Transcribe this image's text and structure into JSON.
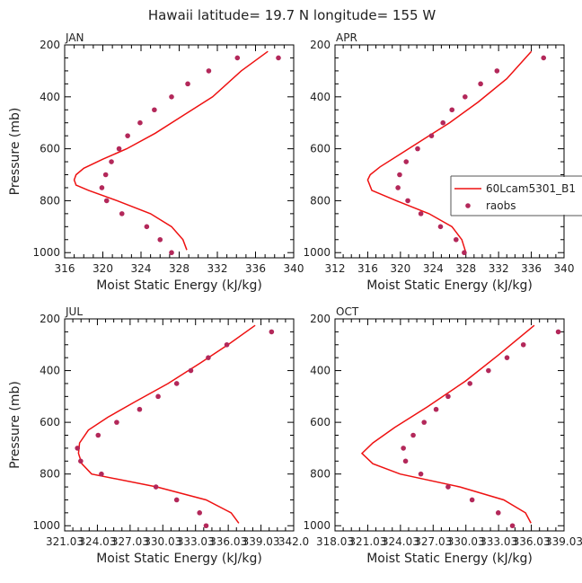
{
  "figure": {
    "title": "Hawaii  latitude= 19.7 N longitude= 155 W"
  },
  "chart_data": [
    {
      "type": "line",
      "panel": "JAN",
      "xlabel": "Moist Static Energy (kJ/kg)",
      "ylabel": "Pressure (mb)",
      "xlim": [
        316,
        340
      ],
      "ylim": [
        200,
        1020
      ],
      "xticks": [
        "316",
        "320",
        "324",
        "328",
        "332",
        "336",
        "340"
      ],
      "yticks": [
        "200",
        "400",
        "600",
        "800",
        "1000"
      ],
      "model": {
        "name": "60Lcam5301_B1",
        "x": [
          328.8,
          328.4,
          327.2,
          325.0,
          321.5,
          318.5,
          317.2,
          317.0,
          317.2,
          318.0,
          320.0,
          322.5,
          325.5,
          328.5,
          331.5,
          334.5,
          337.3
        ],
        "y": [
          990,
          950,
          900,
          850,
          800,
          760,
          740,
          720,
          700,
          675,
          640,
          600,
          540,
          470,
          400,
          300,
          225
        ]
      },
      "raobs": {
        "name": "raobs",
        "x": [
          327.2,
          326.0,
          324.6,
          322.0,
          320.4,
          319.9,
          320.3,
          320.9,
          321.7,
          322.6,
          323.9,
          325.4,
          327.2,
          328.9,
          331.1,
          334.1,
          338.4
        ],
        "y": [
          1000,
          950,
          900,
          850,
          800,
          750,
          700,
          650,
          600,
          550,
          500,
          450,
          400,
          350,
          300,
          250,
          250
        ]
      },
      "legend": false
    },
    {
      "type": "line",
      "panel": "APR",
      "xlabel": "Moist Static Energy (kJ/kg)",
      "ylabel": "",
      "xlim": [
        312,
        340
      ],
      "ylim": [
        200,
        1020
      ],
      "xticks": [
        "312",
        "316",
        "320",
        "324",
        "328",
        "332",
        "336",
        "340"
      ],
      "yticks": [
        "200",
        "400",
        "600",
        "800",
        "1000"
      ],
      "model": {
        "name": "60Lcam5301_B1",
        "x": [
          328.0,
          327.5,
          326.3,
          323.5,
          319.5,
          316.5,
          316.0,
          316.3,
          317.5,
          320.0,
          323.0,
          326.0,
          329.5,
          333.0,
          336.0
        ],
        "y": [
          1000,
          950,
          900,
          850,
          800,
          760,
          720,
          700,
          670,
          620,
          560,
          500,
          420,
          330,
          225
        ]
      },
      "raobs": {
        "name": "raobs",
        "x": [
          327.8,
          326.8,
          324.9,
          322.5,
          320.9,
          319.7,
          319.9,
          320.7,
          322.1,
          323.8,
          325.2,
          326.3,
          327.9,
          329.8,
          331.8,
          337.5
        ],
        "y": [
          1000,
          950,
          900,
          850,
          800,
          750,
          700,
          650,
          600,
          550,
          500,
          450,
          400,
          350,
          300,
          250
        ]
      },
      "legend": true
    },
    {
      "type": "line",
      "panel": "JUL",
      "xlabel": "Moist Static Energy (kJ/kg)",
      "ylabel": "Pressure (mb)",
      "xlim": [
        321.03,
        342.03
      ],
      "ylim": [
        200,
        1020
      ],
      "xticks": [
        "321.03",
        "324.03",
        "327.03",
        "330.03",
        "333.03",
        "336.03",
        "339.03",
        "342.0"
      ],
      "yticks": [
        "200",
        "400",
        "600",
        "800",
        "1000"
      ],
      "model": {
        "name": "60Lcam5301_B1",
        "x": [
          337.0,
          336.3,
          334.0,
          329.5,
          323.5,
          322.6,
          322.3,
          322.4,
          323.2,
          325.0,
          327.5,
          330.5,
          333.5,
          336.0,
          338.5
        ],
        "y": [
          990,
          950,
          900,
          850,
          800,
          760,
          720,
          680,
          630,
          580,
          520,
          450,
          370,
          300,
          225
        ]
      },
      "raobs": {
        "name": "raobs",
        "x": [
          334.0,
          333.4,
          331.3,
          329.4,
          324.4,
          322.5,
          322.2,
          324.1,
          325.8,
          327.9,
          329.6,
          331.3,
          332.6,
          334.2,
          335.9,
          340.0
        ],
        "y": [
          1000,
          950,
          900,
          850,
          800,
          750,
          700,
          650,
          600,
          550,
          500,
          450,
          400,
          350,
          300,
          250
        ]
      },
      "legend": false
    },
    {
      "type": "line",
      "panel": "OCT",
      "xlabel": "Moist Static Energy (kJ/kg)",
      "ylabel": "",
      "xlim": [
        318.03,
        339.03
      ],
      "ylim": [
        200,
        1020
      ],
      "xticks": [
        "318.03",
        "321.03",
        "324.03",
        "327.03",
        "330.03",
        "333.03",
        "336.03",
        "339.03"
      ],
      "yticks": [
        "200",
        "400",
        "600",
        "800",
        "1000"
      ],
      "model": {
        "name": "60Lcam5301_B1",
        "x": [
          336.0,
          335.5,
          333.5,
          329.5,
          324.0,
          321.5,
          320.5,
          321.5,
          323.5,
          326.5,
          330.0,
          333.0,
          336.3
        ],
        "y": [
          990,
          950,
          900,
          850,
          800,
          760,
          720,
          680,
          620,
          540,
          440,
          340,
          225
        ]
      },
      "raobs": {
        "name": "raobs",
        "x": [
          334.3,
          333.0,
          330.6,
          328.4,
          325.9,
          324.5,
          324.3,
          325.2,
          326.2,
          327.3,
          328.4,
          330.4,
          332.1,
          333.8,
          335.3,
          338.5
        ],
        "y": [
          1000,
          950,
          900,
          850,
          800,
          750,
          700,
          650,
          600,
          550,
          500,
          450,
          400,
          350,
          300,
          250
        ]
      },
      "legend": false
    }
  ],
  "colors": {
    "model": "#ee1111",
    "raobs": "#b3285a",
    "axis": "#000000"
  }
}
